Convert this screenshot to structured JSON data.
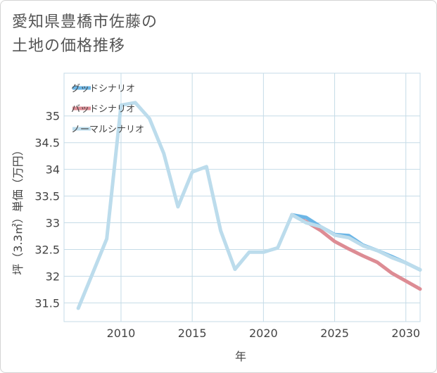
{
  "title_lines": [
    "愛知県豊橋市佐藤の",
    "土地の価格推移"
  ],
  "chart_data": {
    "type": "line",
    "title": "愛知県豊橋市佐藤の土地の価格推移",
    "xlabel": "年",
    "ylabel": "坪（3.3㎡）単価（万円）",
    "xlim": [
      2006,
      2031
    ],
    "ylim": [
      31.15,
      35.8
    ],
    "xticks": [
      2010,
      2015,
      2020,
      2025,
      2030
    ],
    "yticks": [
      31.5,
      32,
      32.5,
      33,
      33.5,
      34,
      34.5,
      35
    ],
    "legend_position": "top-left",
    "series": [
      {
        "name": "グッドシナリオ",
        "color": "#6cb6e6",
        "x": [
          2022,
          2023,
          2024,
          2025,
          2026,
          2027,
          2028,
          2029,
          2030,
          2031
        ],
        "values": [
          33.15,
          33.1,
          32.93,
          32.78,
          32.76,
          32.58,
          32.48,
          32.37,
          32.25,
          32.12
        ]
      },
      {
        "name": "バッドシナリオ",
        "color": "#dd8c94",
        "x": [
          2022,
          2023,
          2024,
          2025,
          2026,
          2027,
          2028,
          2029,
          2030,
          2031
        ],
        "values": [
          33.15,
          33.02,
          32.86,
          32.65,
          32.51,
          32.38,
          32.26,
          32.06,
          31.91,
          31.76
        ]
      },
      {
        "name": "ノーマルシナリオ",
        "color": "#bcdcec",
        "x": [
          2007,
          2008,
          2009,
          2010,
          2011,
          2012,
          2013,
          2014,
          2015,
          2016,
          2017,
          2018,
          2019,
          2020,
          2021,
          2022,
          2023,
          2024,
          2025,
          2026,
          2027,
          2028,
          2029,
          2030,
          2031
        ],
        "values": [
          31.4,
          32.05,
          32.7,
          35.2,
          35.25,
          34.95,
          34.3,
          33.3,
          33.95,
          34.05,
          32.85,
          32.13,
          32.45,
          32.45,
          32.53,
          33.15,
          33.0,
          32.93,
          32.77,
          32.72,
          32.57,
          32.48,
          32.35,
          32.25,
          32.12
        ]
      }
    ]
  }
}
